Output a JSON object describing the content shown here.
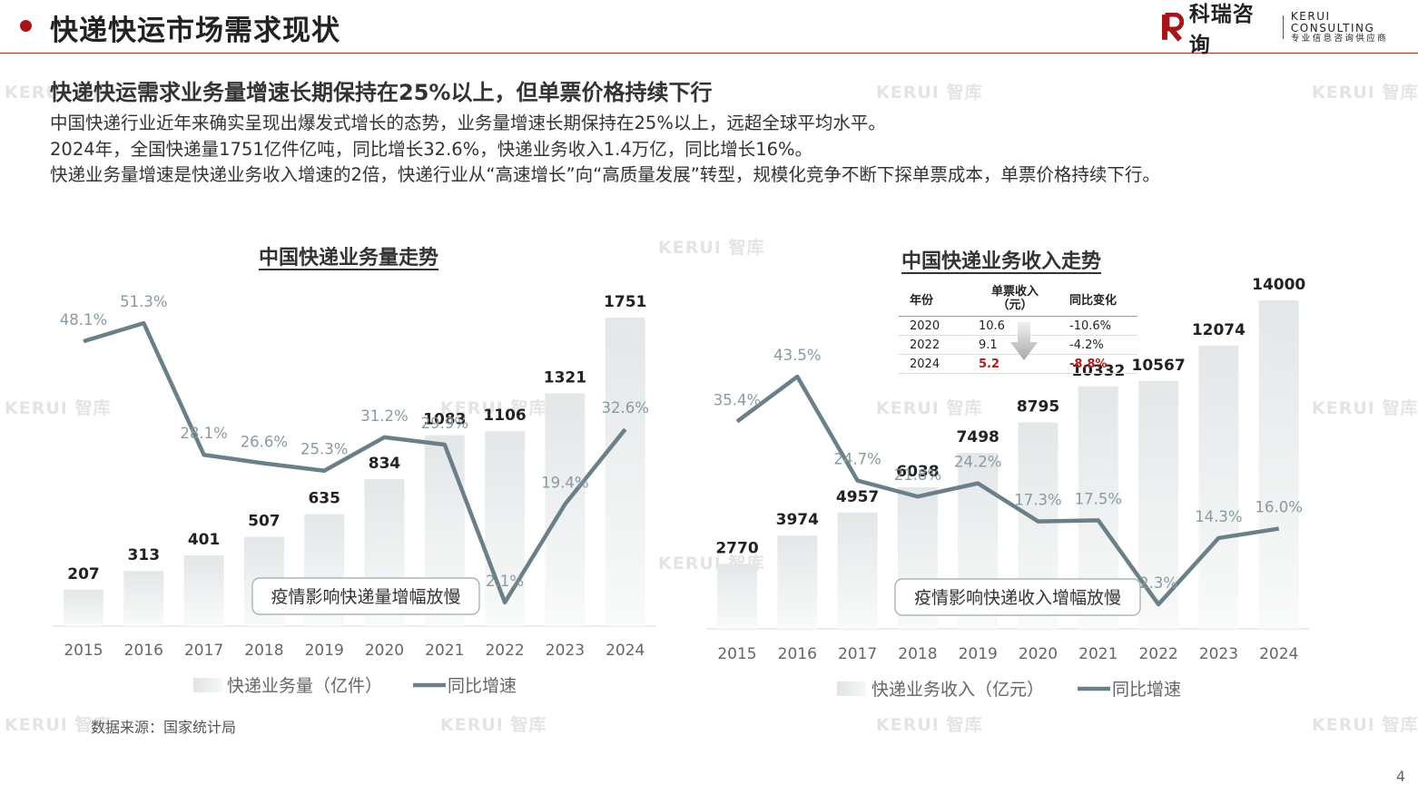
{
  "header": {
    "title": "快递快运市场需求现状",
    "logo_cn": "科瑞咨询",
    "logo_en": "KERUI CONSULTING",
    "logo_tagline": "专业信息咨询供应商"
  },
  "subtitle": "快递快运需求业务量增速长期保持在25%以上，但单票价格持续下行",
  "body_lines": [
    "中国快递行业近年来确实呈现出爆发式增长的态势，业务量增速长期保持在25%以上，远超全球平均水平。",
    "2024年，全国快递量1751亿件亿吨，同比增长32.6%，快递业务收入1.4万亿，同比增长16%。",
    "快递业务量增速是快递业务收入增速的2倍，快递行业从“高速增长”向“高质量发展”转型，规模化竞争不断下探单票成本，单票价格持续下行。"
  ],
  "watermark": "KERUI 智库",
  "source": "数据来源：国家统计局",
  "page_number": "4",
  "colors": {
    "accent": "#a5161a",
    "line": "#6b7f88",
    "bar_top": "#e6eaeb",
    "bar_bottom": "#f8f9f9"
  },
  "mini_table": {
    "headers": [
      "年份",
      "单票收入\n（元）",
      "同比变化"
    ],
    "rows": [
      [
        "2020",
        "10.6",
        "-10.6%"
      ],
      [
        "2022",
        "9.1",
        "-4.2%"
      ],
      [
        "2024",
        "5.2",
        "-8.8%"
      ]
    ]
  },
  "chart_data": [
    {
      "type": "bar",
      "title": "中国快递业务量走势",
      "categories": [
        "2015",
        "2016",
        "2017",
        "2018",
        "2019",
        "2020",
        "2021",
        "2022",
        "2023",
        "2024"
      ],
      "series": [
        {
          "name": "快递业务量（亿件）",
          "type": "bar",
          "values": [
            207,
            313,
            401,
            507,
            635,
            834,
            1083,
            1106,
            1321,
            1751
          ]
        },
        {
          "name": "同比增速",
          "type": "line",
          "values": [
            48.1,
            51.3,
            28.1,
            26.6,
            25.3,
            31.2,
            29.9,
            2.1,
            19.4,
            32.6
          ],
          "labels": [
            "48.1%",
            "51.3%",
            "28.1%",
            "26.6%",
            "25.3%",
            "31.2%",
            "29.9%",
            "2.1%",
            "19.4%",
            "32.6%"
          ]
        }
      ],
      "annotation": "疫情影响快递量增幅放慢",
      "legend": "bottom"
    },
    {
      "type": "bar",
      "title": "中国快递业务收入走势",
      "categories": [
        "2015",
        "2016",
        "2017",
        "2018",
        "2019",
        "2020",
        "2021",
        "2022",
        "2023",
        "2024"
      ],
      "series": [
        {
          "name": "快递业务收入（亿元）",
          "type": "bar",
          "values": [
            2770,
            3974,
            4957,
            6038,
            7498,
            8795,
            10332,
            10567,
            12074,
            14000
          ]
        },
        {
          "name": "同比增速",
          "type": "line",
          "values": [
            35.4,
            43.5,
            24.7,
            21.8,
            24.2,
            17.3,
            17.5,
            2.3,
            14.3,
            16.0
          ],
          "labels": [
            "35.4%",
            "43.5%",
            "24.7%",
            "21.8%",
            "24.2%",
            "17.3%",
            "17.5%",
            "2.3%",
            "14.3%",
            "16.0%"
          ]
        }
      ],
      "annotation": "疫情影响快递收入增幅放慢",
      "legend": "bottom"
    }
  ]
}
